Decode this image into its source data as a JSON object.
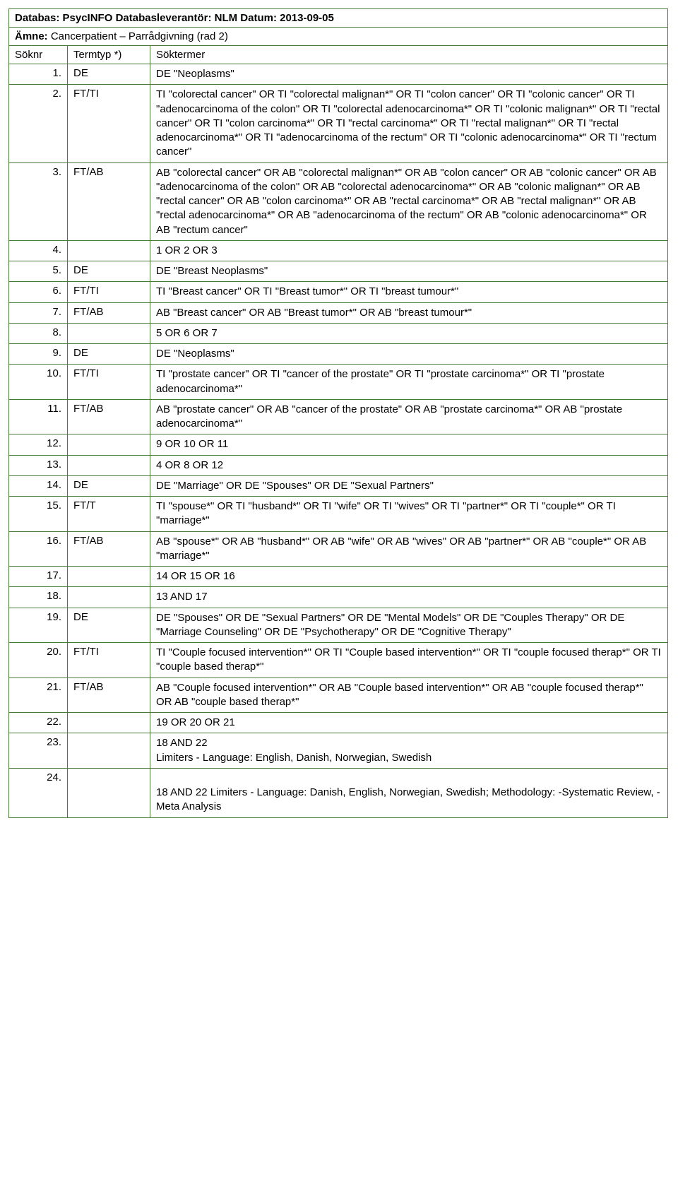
{
  "header1": {
    "db_label": "Databas:",
    "db_value": " PsycINFO ",
    "prov_label": "Databasleverantör:",
    "prov_value": " NLM ",
    "date_label": "Datum:",
    "date_value": " 2013-09-05"
  },
  "header2": {
    "subj_label": "Ämne:",
    "subj_value": " Cancerpatient – Parrådgivning (rad 2)"
  },
  "columns": {
    "a": "Söknr",
    "b": "Termtyp *)",
    "c": "Söktermer"
  },
  "rows": [
    {
      "n": "1.",
      "t": "DE",
      "s": "DE \"Neoplasms\""
    },
    {
      "n": "2.",
      "t": "FT/TI",
      "s": "TI \"colorectal cancer\" OR TI \"colorectal malignan*\" OR TI \"colon cancer\" OR TI \"colonic cancer\" OR TI \"adenocarcinoma of the colon\" OR TI \"colorectal adenocarcinoma*\" OR TI \"colonic malignan*\" OR TI \"rectal cancer\" OR TI \"colon carcinoma*\" OR TI \"rectal carcinoma*\" OR TI \"rectal malignan*\" OR TI \"rectal adenocarcinoma*\" OR TI \"adenocarcinoma of the rectum\" OR TI \"colonic adenocarcinoma*\" OR TI \"rectum cancer\""
    },
    {
      "n": "3.",
      "t": "FT/AB",
      "s": "AB \"colorectal cancer\" OR AB \"colorectal malignan*\" OR AB \"colon cancer\" OR AB \"colonic cancer\" OR AB \"adenocarcinoma of the colon\" OR AB \"colorectal adenocarcinoma*\" OR AB \"colonic malignan*\" OR AB \"rectal cancer\" OR AB \"colon carcinoma*\" OR AB \"rectal carcinoma*\" OR AB \"rectal malignan*\" OR AB \"rectal adenocarcinoma*\" OR AB \"adenocarcinoma of the rectum\" OR AB \"colonic adenocarcinoma*\" OR AB \"rectum cancer\""
    },
    {
      "n": "4.",
      "t": "",
      "s": "1 OR 2 OR 3"
    },
    {
      "n": "5.",
      "t": "DE",
      "s": "DE \"Breast Neoplasms\""
    },
    {
      "n": "6.",
      "t": "FT/TI",
      "s": "TI \"Breast cancer\" OR TI \"Breast tumor*\" OR TI \"breast tumour*\""
    },
    {
      "n": "7.",
      "t": "FT/AB",
      "s": "AB \"Breast cancer\" OR AB \"Breast tumor*\" OR AB \"breast tumour*\""
    },
    {
      "n": "8.",
      "t": "",
      "s": "5 OR 6 OR 7"
    },
    {
      "n": "9.",
      "t": "DE",
      "s": "DE \"Neoplasms\""
    },
    {
      "n": "10.",
      "t": "FT/TI",
      "s": "TI \"prostate cancer\" OR TI \"cancer of the prostate\" OR TI \"prostate carcinoma*\" OR TI \"prostate adenocarcinoma*\""
    },
    {
      "n": "11.",
      "t": "FT/AB",
      "s": "AB \"prostate cancer\" OR AB \"cancer of the prostate\" OR AB \"prostate carcinoma*\" OR AB \"prostate adenocarcinoma*\""
    },
    {
      "n": "12.",
      "t": "",
      "s": "9 OR 10 OR 11"
    },
    {
      "n": "13.",
      "t": "",
      "s": "4 OR 8 OR 12"
    },
    {
      "n": "14.",
      "t": "DE",
      "s": "DE \"Marriage\" OR DE \"Spouses\" OR DE \"Sexual Partners\""
    },
    {
      "n": "15.",
      "t": "FT/T",
      "s": "TI \"spouse*\" OR TI \"husband*\" OR TI \"wife\" OR TI \"wives\" OR TI \"partner*\" OR TI \"couple*\" OR TI \"marriage*\""
    },
    {
      "n": "16.",
      "t": "FT/AB",
      "s": "AB \"spouse*\" OR AB \"husband*\" OR AB \"wife\" OR AB \"wives\" OR AB \"partner*\" OR AB \"couple*\" OR AB \"marriage*\""
    },
    {
      "n": "17.",
      "t": "",
      "s": "14 OR 15 OR 16"
    },
    {
      "n": "18.",
      "t": "",
      "s": "13 AND 17"
    },
    {
      "n": "19.",
      "t": "DE",
      "s": "DE \"Spouses\" OR DE \"Sexual Partners\" OR DE \"Mental Models\" OR DE \"Couples Therapy\" OR DE \"Marriage Counseling\" OR DE \"Psychotherapy\" OR DE \"Cognitive Therapy\""
    },
    {
      "n": "20.",
      "t": "FT/TI",
      "s": "TI \"Couple focused intervention*\" OR TI \"Couple based intervention*\" OR TI \"couple focused therap*\" OR TI \"couple based therap*\""
    },
    {
      "n": "21.",
      "t": "FT/AB",
      "s": "AB \"Couple focused intervention*\" OR AB \"Couple based intervention*\" OR AB \"couple focused therap*\" OR AB \"couple based therap*\""
    },
    {
      "n": "22.",
      "t": "",
      "s": "19 OR 20 OR 21"
    },
    {
      "n": "23.",
      "t": "",
      "s": "18 AND 22\nLimiters - Language: English, Danish, Norwegian, Swedish"
    },
    {
      "n": "24.",
      "t": "",
      "s": "\n18 AND 22 Limiters - Language: Danish, English, Norwegian, Swedish; Methodology: -Systematic Review, -Meta Analysis"
    }
  ]
}
